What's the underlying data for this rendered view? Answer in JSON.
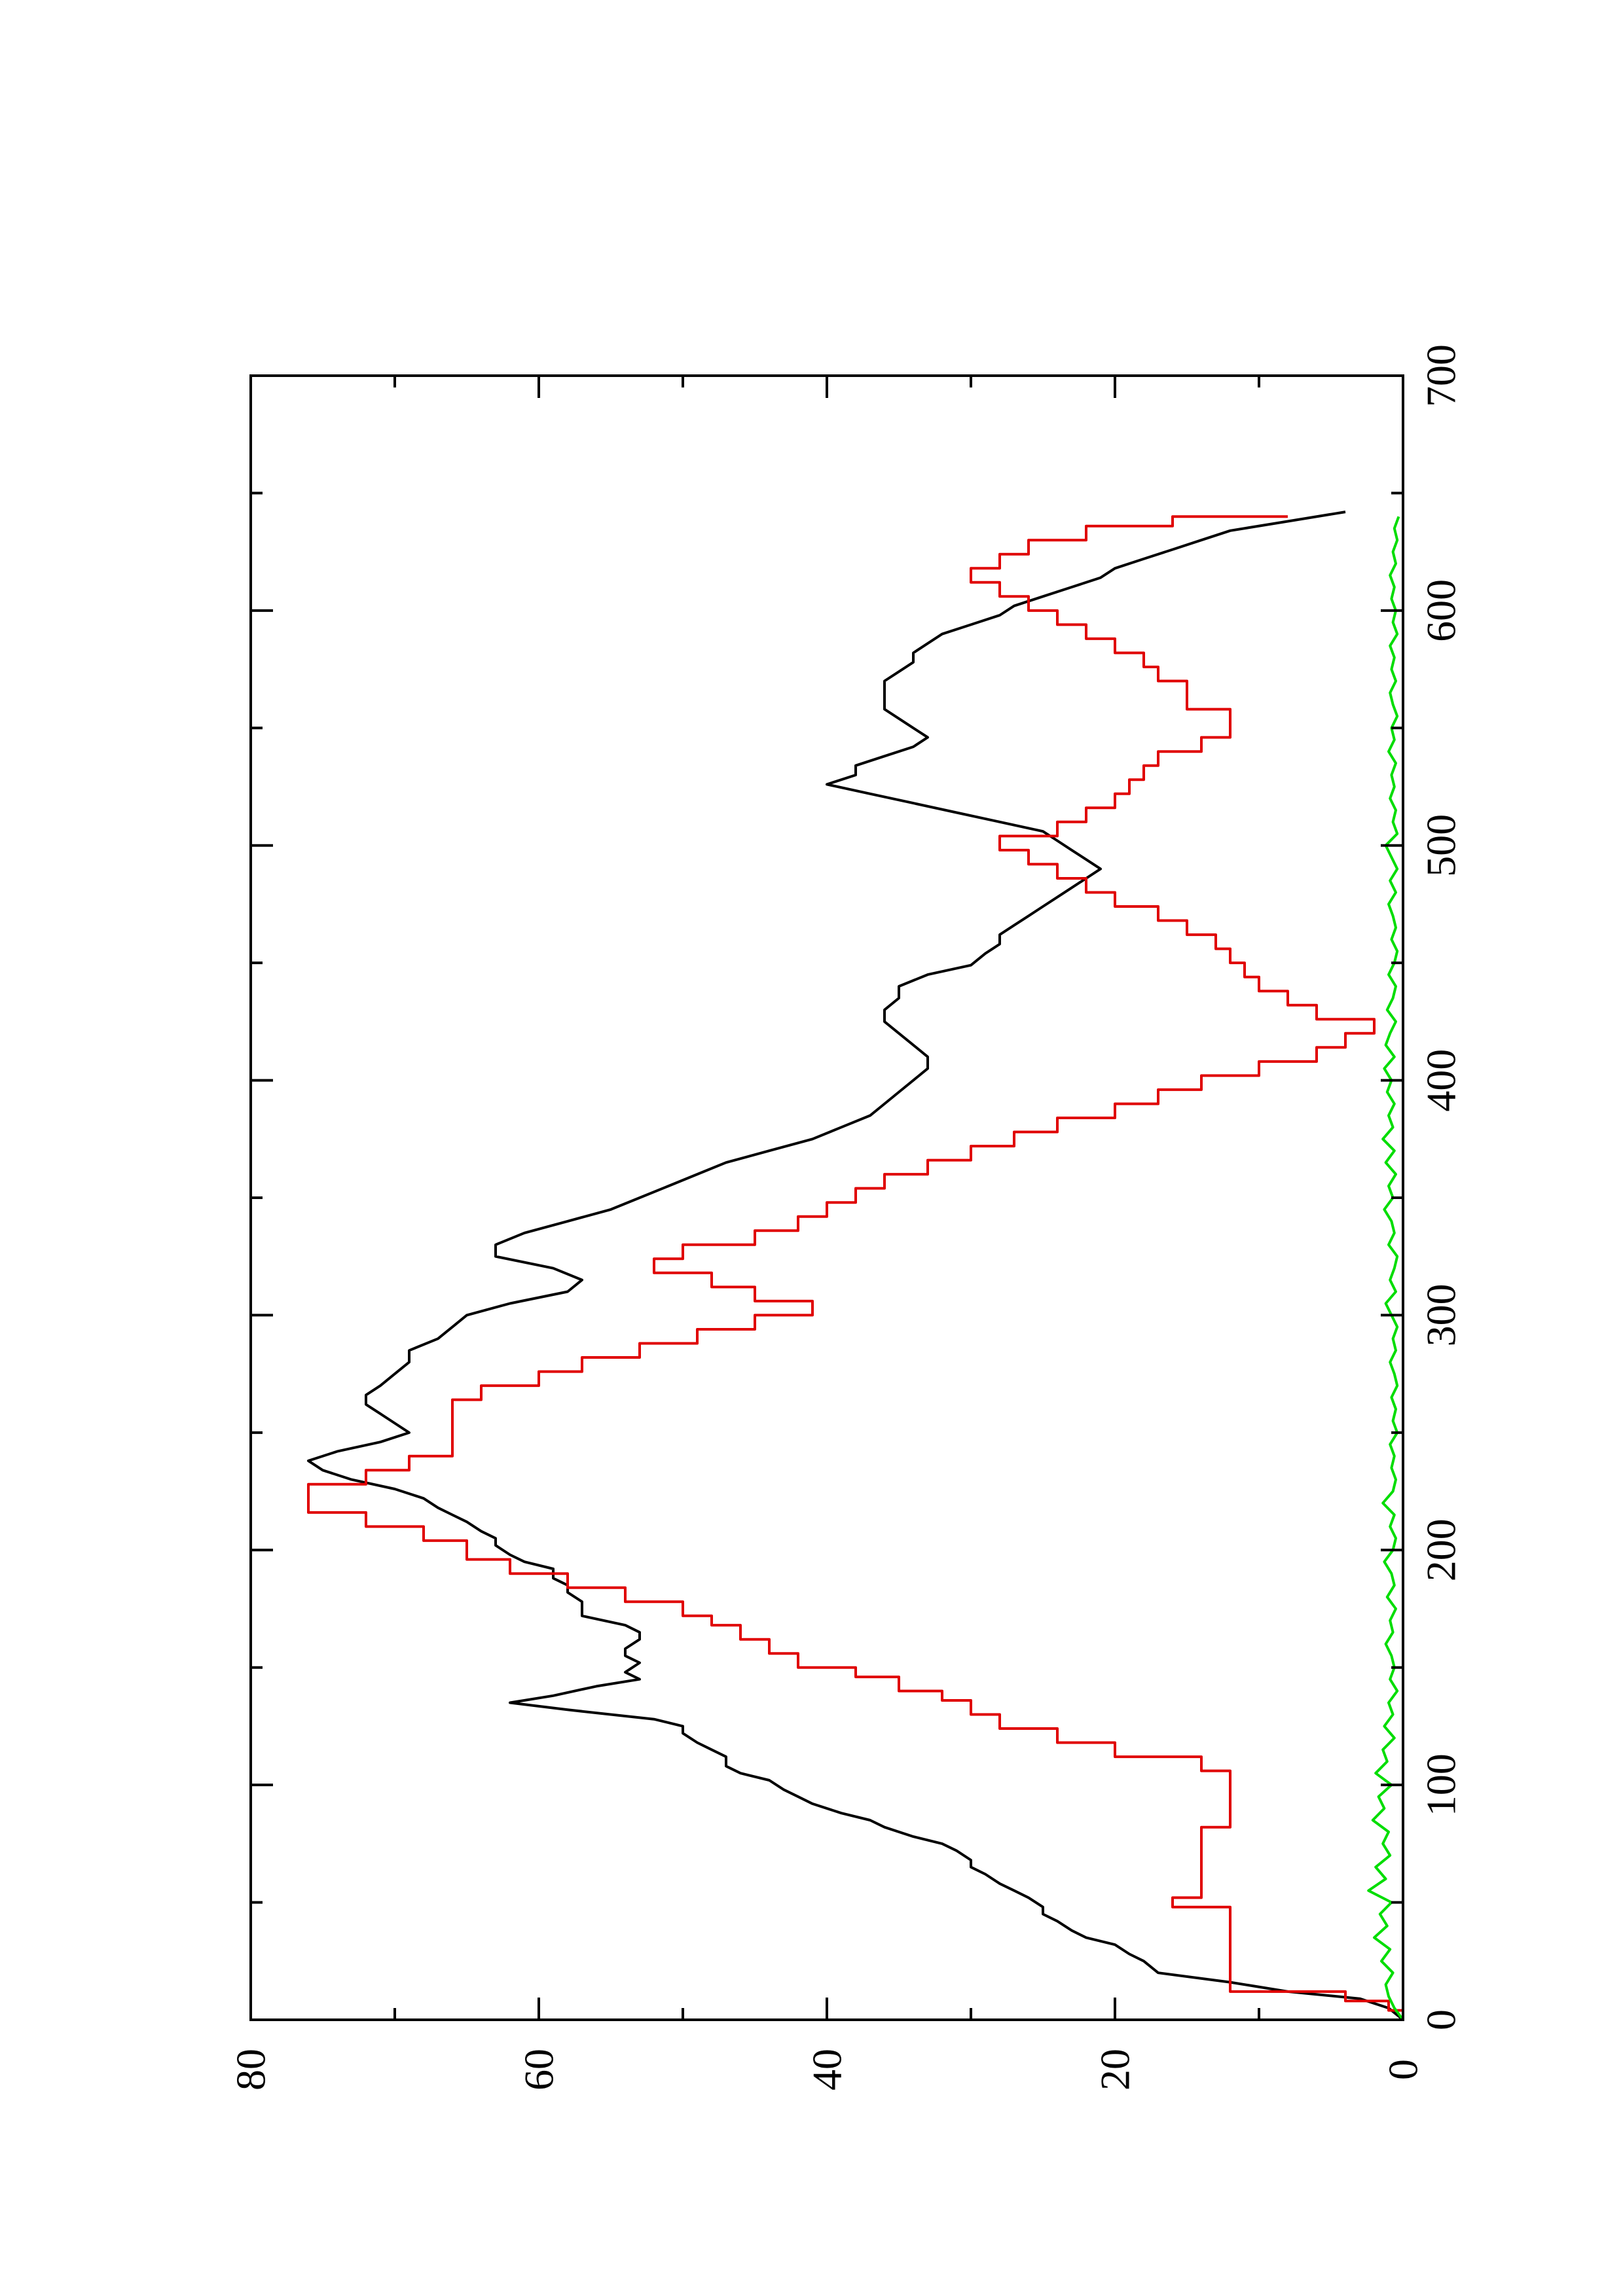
{
  "chart_data": {
    "type": "line",
    "title": "",
    "xlabel": "",
    "ylabel": "",
    "orientation": "rotated 90 degrees counter-clockwise (landscape plot on portrait page)",
    "xlim": [
      0,
      700
    ],
    "ylim": [
      0,
      80
    ],
    "x_ticks": [
      0,
      100,
      200,
      300,
      400,
      500,
      600,
      700
    ],
    "x_tick_labels": [
      "0",
      "100",
      "200",
      "300",
      "400",
      "500",
      "600",
      "700"
    ],
    "x_minor_ticks": [
      50,
      150,
      250,
      350,
      450,
      550,
      650
    ],
    "y_ticks": [
      0,
      20,
      40,
      60,
      80
    ],
    "y_tick_labels": [
      "0",
      "20",
      "40",
      "60",
      "80"
    ],
    "y_minor_ticks": [
      10,
      30,
      50,
      70
    ],
    "grid": false,
    "legend": "none",
    "series": [
      {
        "color": "#000000",
        "style": "line",
        "x": [
          0,
          5,
          9,
          12,
          16,
          20,
          25,
          28,
          32,
          35,
          38,
          42,
          45,
          48,
          52,
          55,
          58,
          62,
          65,
          68,
          72,
          75,
          78,
          82,
          85,
          88,
          92,
          95,
          98,
          102,
          105,
          108,
          112,
          115,
          118,
          122,
          125,
          128,
          132,
          135,
          138,
          142,
          145,
          148,
          152,
          155,
          158,
          162,
          165,
          168,
          172,
          175,
          178,
          182,
          185,
          188,
          192,
          195,
          198,
          202,
          205,
          208,
          212,
          215,
          218,
          222,
          226,
          230,
          234,
          238,
          242,
          246,
          250,
          254,
          258,
          262,
          266,
          270,
          275,
          280,
          285,
          290,
          295,
          300,
          305,
          310,
          315,
          320,
          325,
          330,
          335,
          340,
          345,
          350,
          355,
          360,
          365,
          370,
          375,
          380,
          385,
          390,
          395,
          400,
          405,
          410,
          415,
          420,
          425,
          430,
          435,
          440,
          445,
          449,
          454,
          458,
          462,
          466,
          470,
          474,
          478,
          482,
          486,
          490,
          494,
          498,
          502,
          506,
          510,
          514,
          518,
          522,
          526,
          530,
          534,
          538,
          542,
          546,
          550,
          554,
          558,
          562,
          566,
          570,
          574,
          578,
          582,
          586,
          590,
          594,
          598,
          602,
          606,
          610,
          614,
          618,
          622,
          626,
          630,
          634,
          638,
          642
        ],
        "y": [
          0,
          1,
          3,
          8,
          12,
          17,
          18,
          19,
          20,
          22,
          23,
          24,
          25,
          25,
          26,
          27,
          28,
          29,
          30,
          30,
          31,
          32,
          34,
          36,
          37,
          39,
          41,
          42,
          43,
          44,
          46,
          47,
          47,
          48,
          49,
          50,
          50,
          52,
          58,
          62,
          59,
          56,
          53,
          54,
          53,
          54,
          54,
          53,
          53,
          54,
          57,
          57,
          57,
          58,
          58,
          59,
          59,
          61,
          62,
          63,
          63,
          64,
          65,
          66,
          67,
          68,
          70,
          73,
          75,
          76,
          74,
          71,
          69,
          70,
          71,
          72,
          72,
          71,
          70,
          69,
          69,
          67,
          66,
          65,
          62,
          58,
          57,
          59,
          63,
          63,
          61,
          58,
          55,
          53,
          51,
          49,
          47,
          44,
          41,
          39,
          37,
          36,
          35,
          34,
          33,
          33,
          34,
          35,
          36,
          36,
          35,
          35,
          33,
          30,
          29,
          28,
          28,
          27,
          26,
          25,
          24,
          23,
          22,
          21,
          22,
          23,
          24,
          25,
          28,
          31,
          34,
          37,
          40,
          38,
          38,
          36,
          34,
          33,
          34,
          35,
          36,
          36,
          36,
          36,
          35,
          34,
          34,
          33,
          32,
          30,
          28,
          27,
          25,
          23,
          21,
          20,
          18,
          16,
          14,
          12,
          8,
          4
        ],
        "rendering_note": "values plotted with x as page-vertical position and y as page-horizontal position"
      },
      {
        "color": "#e00000",
        "style": "step",
        "x": [
          0,
          4,
          8,
          12,
          18,
          24,
          30,
          36,
          42,
          48,
          52,
          56,
          60,
          66,
          72,
          78,
          82,
          86,
          90,
          96,
          100,
          106,
          112,
          118,
          124,
          130,
          136,
          140,
          146,
          150,
          156,
          162,
          168,
          172,
          178,
          184,
          190,
          196,
          204,
          210,
          216,
          222,
          228,
          234,
          240,
          246,
          252,
          258,
          264,
          270,
          276,
          282,
          288,
          294,
          300,
          306,
          312,
          318,
          324,
          330,
          336,
          342,
          348,
          354,
          360,
          366,
          372,
          378,
          384,
          390,
          396,
          402,
          408,
          414,
          420,
          426,
          432,
          438,
          444,
          450,
          456,
          462,
          468,
          474,
          480,
          486,
          492,
          498,
          504,
          510,
          516,
          522,
          528,
          534,
          540,
          546,
          552,
          558,
          564,
          570,
          576,
          582,
          588,
          594,
          600,
          606,
          612,
          618,
          624,
          630,
          636,
          640
        ],
        "y": [
          0,
          1,
          4,
          12,
          12,
          12,
          12,
          12,
          12,
          16,
          14,
          14,
          14,
          14,
          14,
          14,
          12,
          12,
          12,
          12,
          12,
          14,
          20,
          24,
          28,
          30,
          32,
          35,
          38,
          42,
          44,
          46,
          48,
          50,
          54,
          58,
          62,
          65,
          68,
          72,
          76,
          76,
          72,
          69,
          66,
          66,
          66,
          66,
          64,
          60,
          57,
          53,
          49,
          45,
          41,
          45,
          48,
          52,
          50,
          45,
          42,
          40,
          38,
          36,
          33,
          30,
          27,
          24,
          20,
          17,
          14,
          10,
          6,
          4,
          2,
          6,
          8,
          10,
          11,
          12,
          13,
          15,
          17,
          20,
          22,
          24,
          26,
          28,
          24,
          22,
          20,
          19,
          18,
          17,
          14,
          12,
          12,
          15,
          15,
          17,
          18,
          20,
          22,
          24,
          26,
          28,
          30,
          28,
          26,
          22,
          16,
          8
        ],
        "rendering_note": "values plotted with x as page-vertical position and y as page-horizontal position"
      },
      {
        "color": "#00dd00",
        "style": "line",
        "x": [
          0,
          5,
          10,
          15,
          20,
          25,
          30,
          35,
          40,
          45,
          50,
          55,
          60,
          65,
          70,
          75,
          80,
          85,
          90,
          95,
          100,
          105,
          110,
          115,
          120,
          125,
          130,
          135,
          140,
          145,
          150,
          155,
          160,
          165,
          170,
          175,
          180,
          185,
          190,
          195,
          200,
          205,
          210,
          215,
          220,
          225,
          230,
          235,
          240,
          245,
          250,
          255,
          260,
          265,
          270,
          275,
          280,
          285,
          290,
          295,
          300,
          305,
          310,
          315,
          320,
          325,
          330,
          335,
          340,
          345,
          350,
          355,
          360,
          365,
          370,
          375,
          380,
          385,
          390,
          395,
          400,
          405,
          410,
          415,
          420,
          425,
          430,
          435,
          440,
          445,
          450,
          455,
          460,
          465,
          470,
          475,
          480,
          485,
          490,
          495,
          500,
          505,
          510,
          515,
          520,
          525,
          530,
          535,
          540,
          545,
          550,
          555,
          560,
          565,
          570,
          575,
          580,
          585,
          590,
          595,
          600,
          605,
          610,
          615,
          620,
          625,
          630,
          635,
          640
        ],
        "y": [
          0,
          0.6,
          1.0,
          1.2,
          0.7,
          1.5,
          0.9,
          2.0,
          1.1,
          1.6,
          0.8,
          2.4,
          1.2,
          1.9,
          0.9,
          1.4,
          1.0,
          2.1,
          1.3,
          1.7,
          0.8,
          1.9,
          1.1,
          1.4,
          0.6,
          1.3,
          0.7,
          1.0,
          0.4,
          0.9,
          0.6,
          0.8,
          1.2,
          0.7,
          0.9,
          0.5,
          1.1,
          0.6,
          0.8,
          1.3,
          0.7,
          0.5,
          0.9,
          0.6,
          1.4,
          0.7,
          0.5,
          0.8,
          0.6,
          0.9,
          0.4,
          0.7,
          0.5,
          0.8,
          0.4,
          0.6,
          0.9,
          0.5,
          0.7,
          0.4,
          0.8,
          1.2,
          0.5,
          0.9,
          0.6,
          0.4,
          1.0,
          0.6,
          0.8,
          1.3,
          0.7,
          1.0,
          0.5,
          1.2,
          0.6,
          1.4,
          0.7,
          1.0,
          0.6,
          1.1,
          0.8,
          1.3,
          0.6,
          1.2,
          0.9,
          0.5,
          1.1,
          0.7,
          0.5,
          1.0,
          0.6,
          0.4,
          0.8,
          0.5,
          0.7,
          1.0,
          0.5,
          0.9,
          0.4,
          0.8,
          1.2,
          0.4,
          0.7,
          0.5,
          0.9,
          0.6,
          0.8,
          0.5,
          1.0,
          0.6,
          0.8,
          0.4,
          0.7,
          0.9,
          0.5,
          0.8,
          0.6,
          0.9,
          0.4,
          0.7,
          0.5,
          0.8,
          0.6,
          0.9,
          0.5,
          0.7,
          0.4,
          0.6,
          0.3
        ],
        "rendering_note": "values plotted with x as page-vertical position and y as page-horizontal position"
      }
    ]
  }
}
